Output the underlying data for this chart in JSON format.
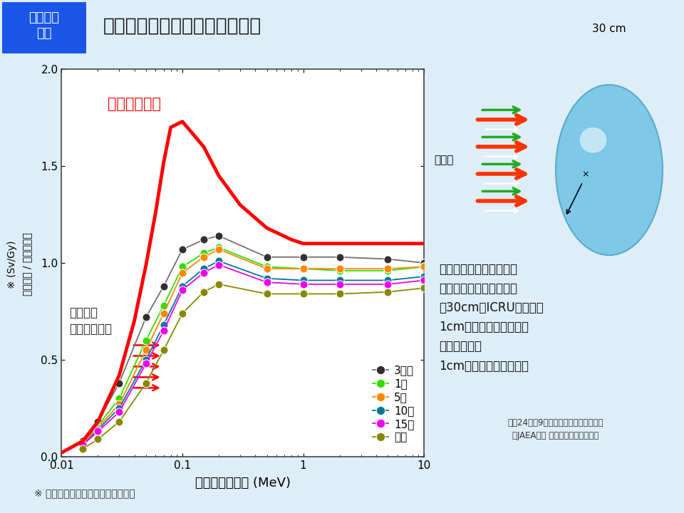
{
  "title": "実効線量と線量当量の値の違い",
  "header_label": "放射線の\n単位",
  "header_bg": "#1a56e8",
  "header_fg": "#ffffff",
  "bg_color": "#deeef8",
  "plot_bg": "#ffffff",
  "xlabel": "光子エネルギー (MeV)",
  "footnote": "※ 空気カーマとは物理量の単位です",
  "citation": "平成24年第9回原子力委員会資料第一号\n（JAEA遠藤 章氏の報告）より抜粋",
  "ambient_dose_label": "周辺線量当量",
  "effective_dose_label": "実効線量\n（回転照射）",
  "ambient_dose_color": "#ff0000",
  "ambient_dose_x": [
    0.01,
    0.015,
    0.02,
    0.03,
    0.04,
    0.05,
    0.06,
    0.07,
    0.08,
    0.1,
    0.15,
    0.2,
    0.3,
    0.5,
    0.8,
    1.0,
    2.0,
    3.0,
    5.0,
    8.0,
    10.0
  ],
  "ambient_dose_y": [
    0.02,
    0.08,
    0.18,
    0.42,
    0.7,
    0.99,
    1.26,
    1.52,
    1.7,
    1.73,
    1.6,
    1.45,
    1.3,
    1.18,
    1.12,
    1.1,
    1.1,
    1.1,
    1.1,
    1.1,
    1.1
  ],
  "series": {
    "3mo": {
      "color": "#303030",
      "label": "3ヶ月",
      "line_color": "#707070",
      "x": [
        0.015,
        0.02,
        0.03,
        0.05,
        0.07,
        0.1,
        0.15,
        0.2,
        0.5,
        1.0,
        2.0,
        5.0,
        10.0
      ],
      "y": [
        0.08,
        0.18,
        0.38,
        0.72,
        0.88,
        1.07,
        1.12,
        1.14,
        1.03,
        1.03,
        1.03,
        1.02,
        1.0
      ]
    },
    "1yr": {
      "color": "#33dd00",
      "label": "1歳",
      "line_color": "#33dd00",
      "x": [
        0.015,
        0.02,
        0.03,
        0.05,
        0.07,
        0.1,
        0.15,
        0.2,
        0.5,
        1.0,
        2.0,
        5.0,
        10.0
      ],
      "y": [
        0.07,
        0.16,
        0.3,
        0.6,
        0.78,
        0.98,
        1.05,
        1.08,
        0.98,
        0.97,
        0.96,
        0.96,
        0.98
      ]
    },
    "5yr": {
      "color": "#ff8800",
      "label": "5歳",
      "line_color": "#ff8800",
      "x": [
        0.015,
        0.02,
        0.03,
        0.05,
        0.07,
        0.1,
        0.15,
        0.2,
        0.5,
        1.0,
        2.0,
        5.0,
        10.0
      ],
      "y": [
        0.07,
        0.15,
        0.27,
        0.55,
        0.74,
        0.95,
        1.03,
        1.07,
        0.97,
        0.97,
        0.97,
        0.97,
        0.98
      ]
    },
    "10yr": {
      "color": "#007799",
      "label": "10歳",
      "line_color": "#007799",
      "x": [
        0.015,
        0.02,
        0.03,
        0.05,
        0.07,
        0.1,
        0.15,
        0.2,
        0.5,
        1.0,
        2.0,
        5.0,
        10.0
      ],
      "y": [
        0.06,
        0.14,
        0.25,
        0.5,
        0.68,
        0.88,
        0.97,
        1.01,
        0.92,
        0.91,
        0.91,
        0.91,
        0.93
      ]
    },
    "15yr": {
      "color": "#ee00ee",
      "label": "15歳",
      "line_color": "#ee00ee",
      "x": [
        0.015,
        0.02,
        0.03,
        0.05,
        0.07,
        0.1,
        0.15,
        0.2,
        0.5,
        1.0,
        2.0,
        5.0,
        10.0
      ],
      "y": [
        0.06,
        0.13,
        0.23,
        0.48,
        0.65,
        0.86,
        0.95,
        0.99,
        0.9,
        0.89,
        0.89,
        0.89,
        0.91
      ]
    },
    "adult": {
      "color": "#888800",
      "label": "成人",
      "line_color": "#888800",
      "x": [
        0.015,
        0.02,
        0.03,
        0.05,
        0.07,
        0.1,
        0.15,
        0.2,
        0.5,
        1.0,
        2.0,
        5.0,
        10.0
      ],
      "y": [
        0.04,
        0.09,
        0.18,
        0.38,
        0.55,
        0.74,
        0.85,
        0.89,
        0.84,
        0.84,
        0.84,
        0.85,
        0.87
      ]
    }
  },
  "right_text": "サーベイメータで測定さ\nれる周辺線量当量は、直\n径30cmのICRU球の深さ\n1cmにおける線量当量で\n定義される。\n1cm線量当量とも言う。",
  "arrow_label": "30 cm",
  "radiation_label": "放射線"
}
